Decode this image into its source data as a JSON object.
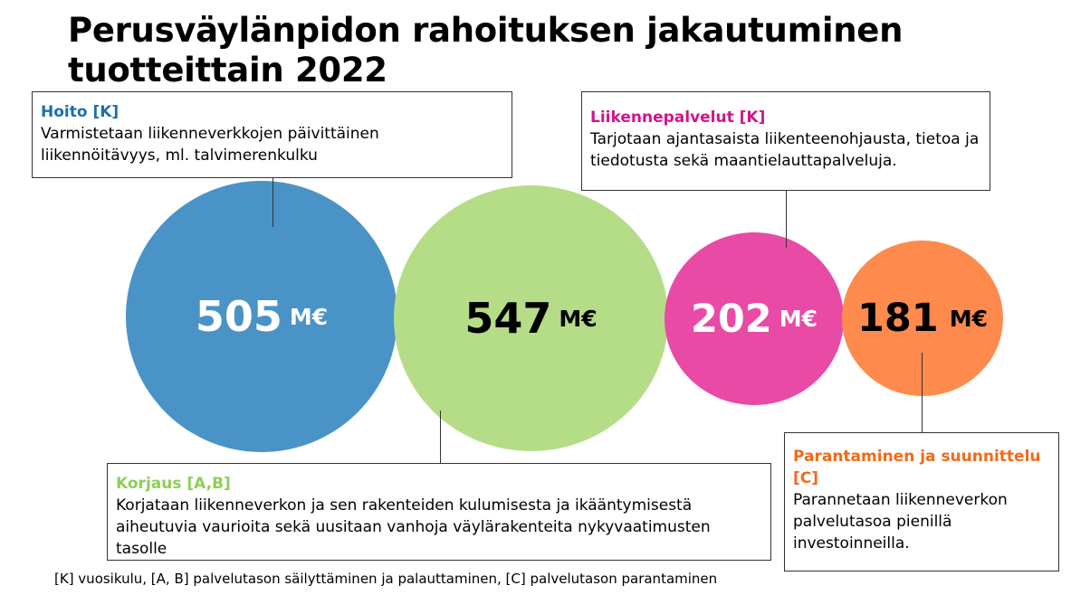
{
  "title": "Perusväylänpidon rahoituksen jakautuminen tuotteittain 2022",
  "colors": {
    "hoito": "#4a93c6",
    "korjaus": "#b5dd88",
    "liikennepalvelut": "#e94aa6",
    "parantaminen": "#fe8a4d"
  },
  "circles": [
    {
      "value": "505",
      "unit": "M€"
    },
    {
      "value": "547",
      "unit": "M€"
    },
    {
      "value": "202",
      "unit": "M€"
    },
    {
      "value": "181",
      "unit": "M€"
    }
  ],
  "boxes": {
    "hoito": {
      "heading": "Hoito [K]",
      "text": "Varmistetaan liikenneverkkojen päivittäinen liikennöitävyys, ml. talvimerenkulku"
    },
    "liikennepalvelut": {
      "heading": "Liikennepalvelut [K]",
      "text": "Tarjotaan ajantasaista liikenteenohjausta, tietoa ja tiedotusta sekä maantielauttapalveluja."
    },
    "korjaus": {
      "heading": "Korjaus [A,B]",
      "text": "Korjataan liikenneverkon ja sen rakenteiden kulumisesta ja ikääntymisestä aiheutuvia vaurioita sekä uusitaan vanhoja väylärakenteita nykyvaatimusten tasolle"
    },
    "parantaminen": {
      "heading": "Parantaminen ja suunnittelu [C]",
      "text": "Parannetaan liikenneverkon palvelutasoa pienillä investoinneilla."
    }
  },
  "footnote": "[K] vuosikulu, [A, B] palvelutason säilyttäminen ja palauttaminen, [C] palvelutason parantaminen"
}
